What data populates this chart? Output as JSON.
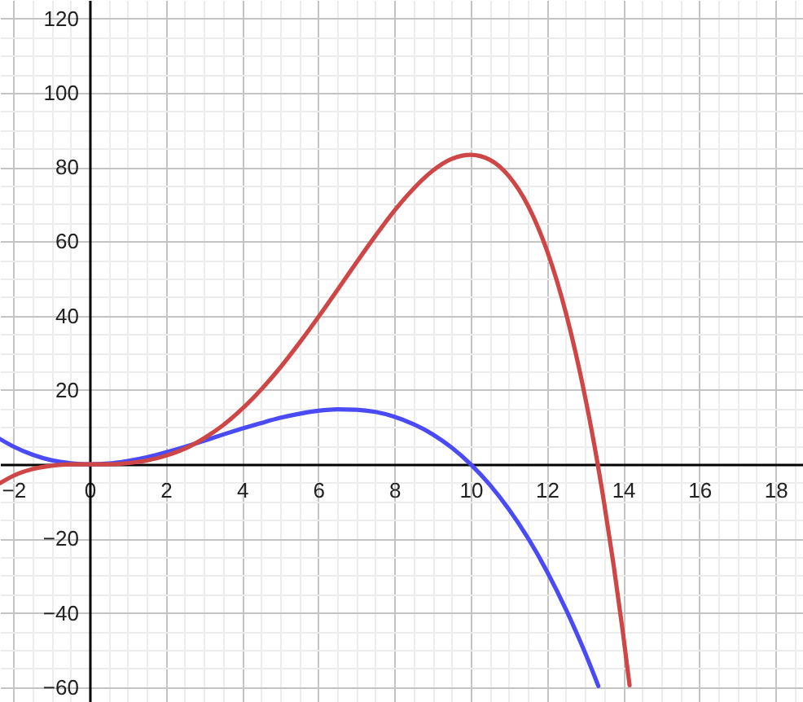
{
  "chart_data": {
    "type": "line",
    "series": [
      {
        "color": "#4b4bf5",
        "x": [
          -2.35,
          -2,
          -1.5,
          -1,
          -0.5,
          0,
          0.5,
          1,
          1.5,
          2,
          2.5,
          3,
          3.5,
          4,
          4.5,
          5,
          5.5,
          6,
          6.5,
          7,
          7.5,
          8,
          8.5,
          9,
          9.5,
          10,
          10.5,
          11,
          11.5,
          12,
          12.5,
          13,
          13.35
        ],
        "values": [
          6.8,
          4.8,
          2.6,
          1.1,
          0.3,
          0,
          0.2,
          0.9,
          1.9,
          3.2,
          4.7,
          6.3,
          8.0,
          9.6,
          11.1,
          12.5,
          13.6,
          14.4,
          14.8,
          14.7,
          14.1,
          12.8,
          10.8,
          8.1,
          4.5,
          0,
          -5.5,
          -12.1,
          -19.8,
          -28.8,
          -39.1,
          -50.7,
          -59.7
        ]
      },
      {
        "color": "#cf4646",
        "x": [
          -2.35,
          -2,
          -1.5,
          -1,
          -0.5,
          0,
          0.5,
          1,
          1.5,
          2,
          2.5,
          3,
          3.5,
          4,
          4.5,
          5,
          5.5,
          6,
          6.5,
          7,
          7.5,
          8,
          8.5,
          9,
          9.5,
          10,
          10.5,
          11,
          11.5,
          12,
          12.5,
          13,
          13.25,
          13.5,
          13.75,
          14,
          14.17
        ],
        "values": [
          -5.1,
          -3.1,
          -1.3,
          -0.4,
          0,
          0,
          0,
          0.3,
          1.0,
          2.3,
          4.2,
          7.0,
          10.5,
          14.9,
          20.1,
          26.0,
          32.6,
          39.6,
          46.9,
          54.3,
          61.5,
          68.3,
          74.2,
          79.0,
          82.2,
          83.3,
          82.0,
          77.6,
          69.7,
          57.6,
          40.7,
          18.3,
          4.9,
          -10.3,
          -27.1,
          -45.7,
          -59.5
        ]
      }
    ],
    "xlim": [
      -2.35,
      18.72
    ],
    "ylim": [
      -64,
      125
    ],
    "xticks": [
      {
        "value": -2,
        "label": "−2"
      },
      {
        "value": -1.5,
        "label": null
      },
      {
        "value": -1,
        "label": null
      },
      {
        "value": -0.5,
        "label": null
      },
      0,
      {
        "value": 0.5,
        "label": null
      },
      {
        "value": 1,
        "label": null
      },
      {
        "value": 1.5,
        "label": null
      },
      2,
      {
        "value": 2.5,
        "label": null
      },
      {
        "value": 3,
        "label": null
      },
      {
        "value": 3.5,
        "label": null
      },
      4,
      {
        "value": 4.5,
        "label": null
      },
      {
        "value": 5,
        "label": null
      },
      {
        "value": 5.5,
        "label": null
      },
      6,
      {
        "value": 6.5,
        "label": null
      },
      {
        "value": 7,
        "label": null
      },
      {
        "value": 7.5,
        "label": null
      },
      8,
      {
        "value": 8.5,
        "label": null
      },
      {
        "value": 9,
        "label": null
      },
      {
        "value": 9.5,
        "label": null
      },
      10,
      {
        "value": 10.5,
        "label": null
      },
      {
        "value": 11,
        "label": null
      },
      {
        "value": 11.5,
        "label": null
      },
      12,
      {
        "value": 12.5,
        "label": null
      },
      {
        "value": 13,
        "label": null
      },
      {
        "value": 13.5,
        "label": null
      },
      14,
      {
        "value": 14.5,
        "label": null
      },
      {
        "value": 15,
        "label": null
      },
      {
        "value": 15.5,
        "label": null
      },
      16,
      {
        "value": 16.5,
        "label": null
      },
      {
        "value": 17,
        "label": null
      },
      {
        "value": 17.5,
        "label": null
      },
      18,
      {
        "value": 18.5,
        "label": null
      }
    ],
    "yticks": [
      {
        "value": -60,
        "label": "−60"
      },
      {
        "value": -55,
        "label": null
      },
      {
        "value": -50,
        "label": null
      },
      {
        "value": -45,
        "label": null
      },
      {
        "value": -40,
        "label": "−40"
      },
      {
        "value": -35,
        "label": null
      },
      {
        "value": -30,
        "label": null
      },
      {
        "value": -25,
        "label": null
      },
      {
        "value": -20,
        "label": "−20"
      },
      {
        "value": -15,
        "label": null
      },
      {
        "value": -10,
        "label": null
      },
      {
        "value": -5,
        "label": null
      },
      {
        "value": 0,
        "label": null
      },
      {
        "value": 5,
        "label": null
      },
      {
        "value": 10,
        "label": null
      },
      {
        "value": 15,
        "label": null
      },
      20,
      {
        "value": 25,
        "label": null
      },
      {
        "value": 30,
        "label": null
      },
      {
        "value": 35,
        "label": null
      },
      40,
      {
        "value": 45,
        "label": null
      },
      {
        "value": 50,
        "label": null
      },
      {
        "value": 55,
        "label": null
      },
      60,
      {
        "value": 65,
        "label": null
      },
      {
        "value": 70,
        "label": null
      },
      {
        "value": 75,
        "label": null
      },
      80,
      {
        "value": 85,
        "label": null
      },
      {
        "value": 90,
        "label": null
      },
      {
        "value": 95,
        "label": null
      },
      100,
      {
        "value": 105,
        "label": null
      },
      {
        "value": 110,
        "label": null
      },
      {
        "value": 115,
        "label": null
      },
      120
    ],
    "grid": true,
    "marker": "none",
    "line_style": "solid"
  }
}
